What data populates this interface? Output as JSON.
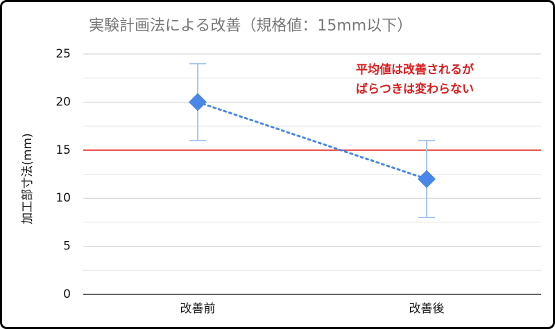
{
  "chart_data": {
    "type": "line",
    "title": "実験計画法による改善（規格値：15mm以下）",
    "y_label": "加工部寸法(mm)",
    "categories": [
      "改善前",
      "改善後"
    ],
    "series": [
      {
        "name": "加工部寸法",
        "color": "#4a86e8",
        "values": [
          20,
          12
        ],
        "errors": [
          4,
          4
        ],
        "error_color": "#a9c6f0"
      }
    ],
    "ylim": [
      0,
      25
    ],
    "yticks": [
      0,
      5,
      10,
      15,
      20,
      25
    ],
    "minor_yticks": [
      2.5,
      7.5,
      12.5,
      17.5,
      22.5
    ],
    "grid": true,
    "reference_line": {
      "value": 15,
      "color": "#e53935"
    },
    "annotation": [
      "平均値は改善されるが",
      "ばらつきは変わらない"
    ],
    "annotation_color": "#d81e1e"
  }
}
